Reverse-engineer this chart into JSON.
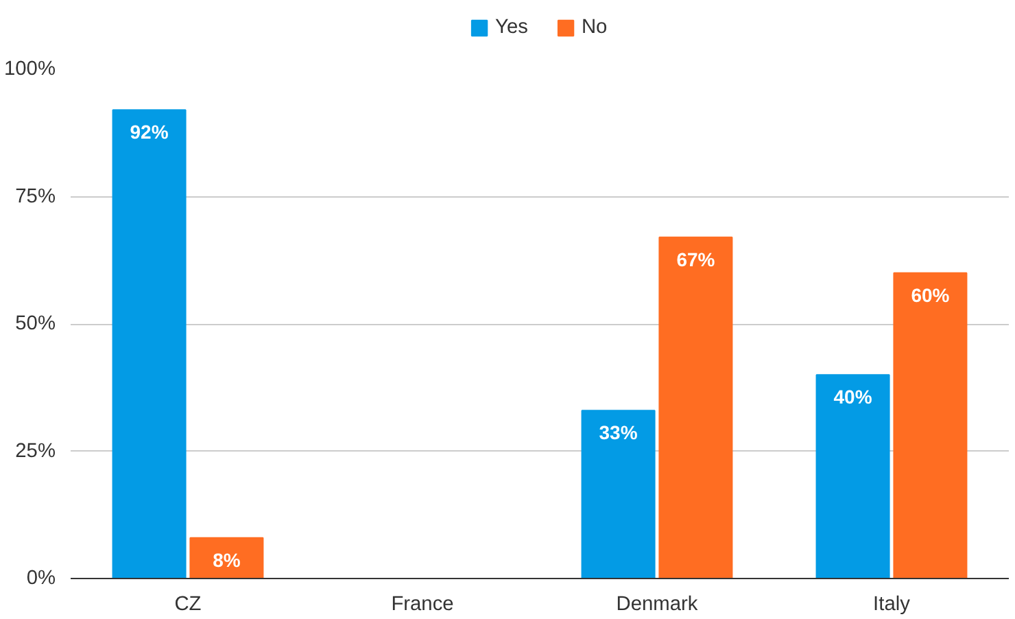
{
  "chart_data": {
    "type": "bar",
    "categories": [
      "CZ",
      "France",
      "Denmark",
      "Italy"
    ],
    "series": [
      {
        "name": "Yes",
        "color": "#039be5",
        "values": [
          92,
          null,
          33,
          40
        ],
        "value_labels": [
          "92%",
          null,
          "33%",
          "40%"
        ]
      },
      {
        "name": "No",
        "color": "#ff6d22",
        "values": [
          8,
          null,
          67,
          60
        ],
        "value_labels": [
          "8%",
          null,
          "67%",
          "60%"
        ]
      }
    ],
    "ylim": [
      0,
      100
    ],
    "yticks": [
      {
        "value": 0,
        "label": "0%"
      },
      {
        "value": 25,
        "label": "25%"
      },
      {
        "value": 50,
        "label": "50%"
      },
      {
        "value": 75,
        "label": "75%"
      },
      {
        "value": 100,
        "label": "100%"
      }
    ],
    "grid": "y",
    "legend": "top"
  }
}
